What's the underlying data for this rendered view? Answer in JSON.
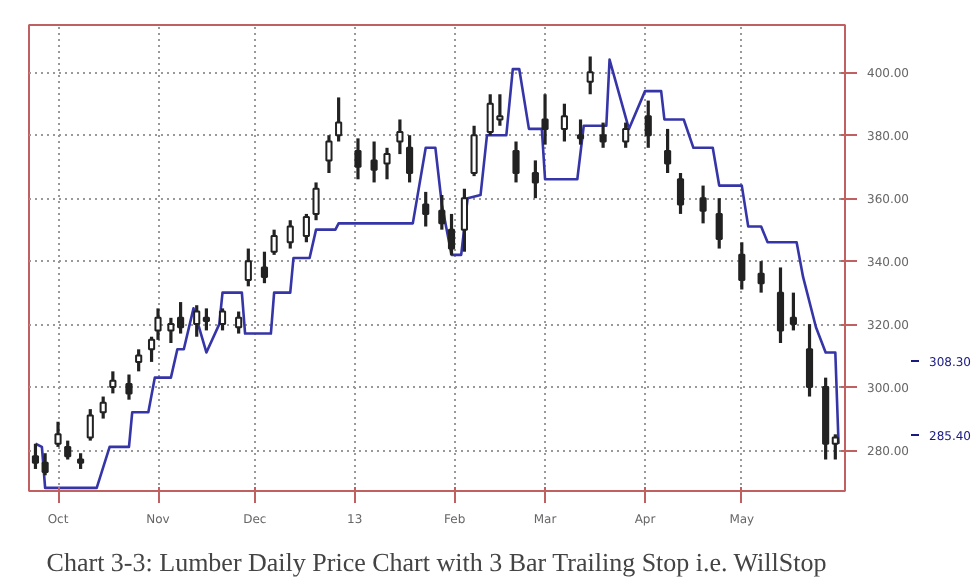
{
  "chart_data": {
    "type": "candlestick",
    "title": "Chart 3-3: Lumber Daily Price Chart with 3 Bar Trailing Stop i.e. WillStop",
    "x": [
      "2012-09-24",
      "2012-09-27",
      "2012-10-01",
      "2012-10-04",
      "2012-10-08",
      "2012-10-11",
      "2012-10-15",
      "2012-10-18",
      "2012-10-23",
      "2012-10-26",
      "2012-10-30",
      "2012-11-01",
      "2012-11-05",
      "2012-11-08",
      "2012-11-13",
      "2012-11-16",
      "2012-11-21",
      "2012-11-26",
      "2012-11-29",
      "2012-12-04",
      "2012-12-07",
      "2012-12-12",
      "2012-12-17",
      "2012-12-20",
      "2012-12-24",
      "2012-12-27",
      "2013-01-02",
      "2013-01-07",
      "2013-01-11",
      "2013-01-15",
      "2013-01-18",
      "2013-01-23",
      "2013-01-28",
      "2013-01-31",
      "2013-02-04",
      "2013-02-07",
      "2013-02-12",
      "2013-02-15",
      "2013-02-20",
      "2013-02-26",
      "2013-03-01",
      "2013-03-07",
      "2013-03-12",
      "2013-03-15",
      "2013-03-19",
      "2013-03-26",
      "2013-04-02",
      "2013-04-08",
      "2013-04-12",
      "2013-04-19",
      "2013-04-24",
      "2013-05-01",
      "2013-05-07",
      "2013-05-13",
      "2013-05-17",
      "2013-05-22",
      "2013-05-27",
      "2013-05-30"
    ],
    "ohlc": [
      [
        278,
        282,
        274,
        276
      ],
      [
        276,
        279,
        272,
        273
      ],
      [
        282,
        289,
        281,
        285
      ],
      [
        281,
        283,
        277,
        278
      ],
      [
        277,
        279,
        274,
        276
      ],
      [
        284,
        293,
        283,
        291
      ],
      [
        292,
        297,
        290,
        295
      ],
      [
        300,
        305,
        298,
        302
      ],
      [
        301,
        304,
        296,
        298
      ],
      [
        308,
        312,
        305,
        310
      ],
      [
        312,
        316,
        308,
        315
      ],
      [
        318,
        325,
        315,
        322
      ],
      [
        318,
        322,
        314,
        320
      ],
      [
        322,
        327,
        317,
        319
      ],
      [
        320,
        326,
        316,
        324
      ],
      [
        322,
        325,
        318,
        321
      ],
      [
        320,
        325,
        318,
        324
      ],
      [
        319,
        324,
        317,
        322
      ],
      [
        334,
        344,
        332,
        340
      ],
      [
        338,
        343,
        333,
        335
      ],
      [
        343,
        350,
        342,
        348
      ],
      [
        346,
        353,
        344,
        351
      ],
      [
        348,
        355,
        346,
        354
      ],
      [
        355,
        365,
        353,
        363
      ],
      [
        372,
        380,
        368,
        378
      ],
      [
        380,
        392,
        378,
        384
      ],
      [
        375,
        379,
        366,
        370
      ],
      [
        372,
        378,
        365,
        369
      ],
      [
        371,
        376,
        366,
        374
      ],
      [
        378,
        385,
        374,
        381
      ],
      [
        376,
        380,
        365,
        368
      ],
      [
        358,
        362,
        351,
        355
      ],
      [
        356,
        361,
        350,
        352
      ],
      [
        350,
        355,
        342,
        344
      ],
      [
        350,
        363,
        343,
        360
      ],
      [
        368,
        383,
        367,
        380
      ],
      [
        381,
        393,
        380,
        390
      ],
      [
        385,
        393,
        383,
        386
      ],
      [
        375,
        378,
        365,
        368
      ],
      [
        368,
        372,
        360,
        365
      ],
      [
        385,
        393,
        377,
        382
      ],
      [
        382,
        390,
        378,
        386
      ],
      [
        380,
        385,
        377,
        379
      ],
      [
        397,
        405,
        393,
        400
      ],
      [
        380,
        384,
        376,
        378
      ],
      [
        378,
        384,
        376,
        382
      ],
      [
        386,
        391,
        376,
        380
      ],
      [
        375,
        382,
        368,
        371
      ],
      [
        366,
        368,
        355,
        358
      ],
      [
        360,
        364,
        352,
        356
      ],
      [
        355,
        360,
        344,
        347
      ],
      [
        342,
        346,
        331,
        334
      ],
      [
        336,
        340,
        330,
        333
      ],
      [
        330,
        338,
        314,
        318
      ],
      [
        322,
        330,
        318,
        320
      ],
      [
        312,
        320,
        297,
        300
      ],
      [
        300,
        303,
        277,
        282
      ],
      [
        282,
        285,
        277,
        284
      ]
    ],
    "color": "#222222",
    "series": [
      {
        "type": "line",
        "color": "#3535a8",
        "x": [
          "2012-09-24",
          "2012-09-26",
          "2012-09-27",
          "2012-10-13",
          "2012-10-17",
          "2012-10-23",
          "2012-10-24",
          "2012-10-29",
          "2012-10-31",
          "2012-11-05",
          "2012-11-07",
          "2012-11-09",
          "2012-11-12",
          "2012-11-14",
          "2012-11-16",
          "2012-11-20",
          "2012-11-21",
          "2012-11-27",
          "2012-11-28",
          "2012-12-06",
          "2012-12-07",
          "2012-12-12",
          "2012-12-13",
          "2012-12-18",
          "2012-12-20",
          "2012-12-26",
          "2012-12-27",
          "2013-01-19",
          "2013-01-23",
          "2013-01-26",
          "2013-01-28",
          "2013-01-31",
          "2013-02-03",
          "2013-02-05",
          "2013-02-09",
          "2013-02-11",
          "2013-02-17",
          "2013-02-19",
          "2013-02-21",
          "2013-02-24",
          "2013-02-28",
          "2013-03-01",
          "2013-03-11",
          "2013-03-13",
          "2013-03-20",
          "2013-03-21",
          "2013-03-27",
          "2013-04-01",
          "2013-04-06",
          "2013-04-07",
          "2013-04-13",
          "2013-04-16",
          "2013-04-22",
          "2013-04-24",
          "2013-05-01",
          "2013-05-03",
          "2013-05-07",
          "2013-05-09",
          "2013-05-18",
          "2013-05-20",
          "2013-05-24",
          "2013-05-27",
          "2013-05-30",
          "2013-05-31"
        ],
        "values": [
          282,
          281,
          268,
          268,
          281,
          281,
          292,
          292,
          303,
          303,
          312,
          312,
          325,
          318,
          311,
          320,
          330,
          330,
          317,
          317,
          330,
          330,
          341,
          341,
          350,
          350,
          352,
          352,
          376,
          376,
          358,
          342,
          342,
          360,
          361,
          380,
          380,
          401,
          401,
          382,
          382,
          366,
          366,
          383,
          383,
          404,
          382,
          394,
          394,
          385,
          385,
          376,
          376,
          364,
          364,
          351,
          351,
          346,
          346,
          335,
          319,
          311,
          311,
          282
        ]
      }
    ],
    "xlim": [
      "2012-09-22",
      "2013-06-02"
    ],
    "xticks": [
      {
        "value": "2012-10-01",
        "label": "Oct"
      },
      {
        "value": "2012-11-01",
        "label": "Nov"
      },
      {
        "value": "2012-12-01",
        "label": "Dec"
      },
      {
        "value": "2013-01-01",
        "label": "13"
      },
      {
        "value": "2013-02-01",
        "label": "Feb"
      },
      {
        "value": "2013-03-01",
        "label": "Mar"
      },
      {
        "value": "2013-04-01",
        "label": "Apr"
      },
      {
        "value": "2013-05-01",
        "label": "May"
      }
    ],
    "ylim": [
      267,
      415
    ],
    "yticks": [
      {
        "value": 280,
        "label": "280.00"
      },
      {
        "value": 300,
        "label": "300.00"
      },
      {
        "value": 320,
        "label": "320.00"
      },
      {
        "value": 340,
        "label": "340.00"
      },
      {
        "value": 360,
        "label": "360.00"
      },
      {
        "value": 380,
        "label": "380.00"
      },
      {
        "value": 400,
        "label": "400.00"
      }
    ],
    "annotations": [
      "308.30",
      "285.40"
    ],
    "grid": true
  }
}
